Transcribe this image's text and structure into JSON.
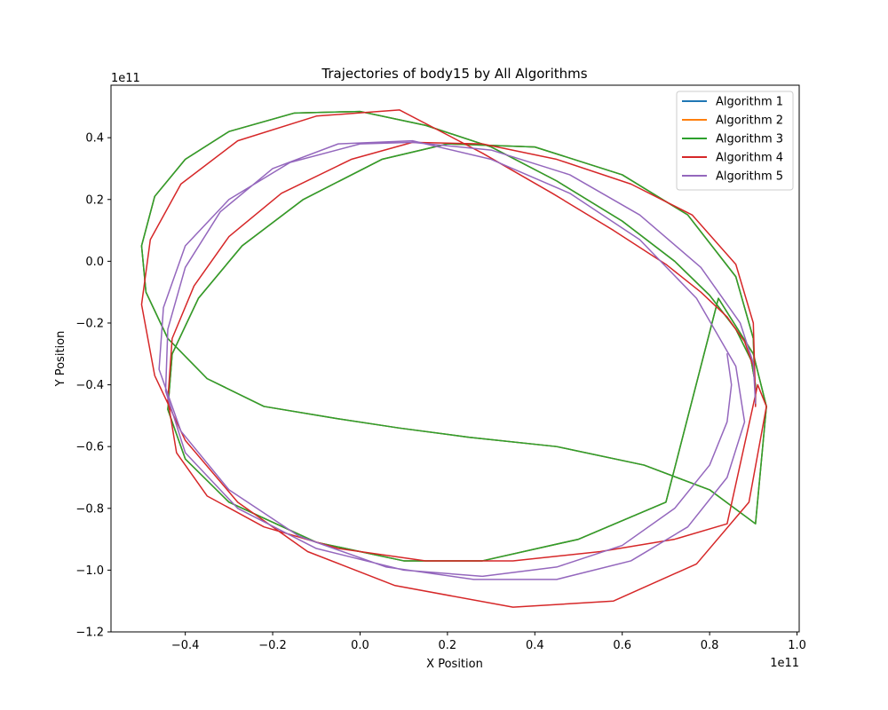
{
  "chart_data": {
    "type": "line",
    "title": "Trajectories of body15 by All Algorithms",
    "xlabel": "X Position",
    "ylabel": "Y Position",
    "x_offset_label": "1e11",
    "y_offset_label": "1e11",
    "xlim": [
      -0.57,
      1.005
    ],
    "ylim": [
      -1.2,
      0.57
    ],
    "x_ticks": [
      -0.4,
      -0.2,
      0.0,
      0.2,
      0.4,
      0.6,
      0.8,
      1.0
    ],
    "x_tick_labels": [
      "−0.4",
      "−0.2",
      "0.0",
      "0.2",
      "0.4",
      "0.6",
      "0.8",
      "1.0"
    ],
    "y_ticks": [
      -1.2,
      -1.0,
      -0.8,
      -0.6,
      -0.4,
      -0.2,
      0.0,
      0.2,
      0.4
    ],
    "y_tick_labels": [
      "−1.2",
      "−1.0",
      "−0.8",
      "−0.6",
      "−0.4",
      "−0.2",
      "0.0",
      "0.2",
      "0.4"
    ],
    "legend_position": "top-right",
    "grid": false,
    "series": [
      {
        "name": "Algorithm 1",
        "color": "#1f77b4",
        "x": [
          0.905,
          0.905,
          0.895,
          0.86,
          0.8,
          0.72,
          0.6,
          0.45,
          0.3,
          0.15,
          0.0,
          -0.15,
          -0.3,
          -0.4,
          -0.47,
          -0.5,
          -0.49,
          -0.44,
          -0.35,
          -0.22,
          -0.05,
          0.09,
          0.25,
          0.45,
          0.65,
          0.8,
          0.905,
          0.93,
          0.9,
          0.82,
          0.7,
          0.5,
          0.28,
          0.1,
          -0.1,
          -0.3,
          -0.4,
          -0.44,
          -0.43,
          -0.37,
          -0.27,
          -0.13,
          0.05,
          0.2,
          0.4,
          0.6,
          0.75,
          0.86,
          0.9,
          0.905
        ],
        "y": [
          -0.465,
          -0.4,
          -0.32,
          -0.22,
          -0.11,
          0.0,
          0.13,
          0.26,
          0.37,
          0.44,
          0.485,
          0.48,
          0.42,
          0.33,
          0.21,
          0.05,
          -0.1,
          -0.25,
          -0.38,
          -0.47,
          -0.51,
          -0.54,
          -0.57,
          -0.6,
          -0.66,
          -0.74,
          -0.85,
          -0.47,
          -0.3,
          -0.12,
          -0.78,
          -0.9,
          -0.97,
          -0.97,
          -0.91,
          -0.78,
          -0.64,
          -0.48,
          -0.3,
          -0.12,
          0.05,
          0.2,
          0.33,
          0.38,
          0.37,
          0.28,
          0.15,
          -0.05,
          -0.25,
          -0.46
        ]
      },
      {
        "name": "Algorithm 2",
        "color": "#ff7f0e",
        "x": [
          0.905,
          0.905,
          0.895,
          0.86,
          0.8,
          0.72,
          0.6,
          0.45,
          0.3,
          0.15,
          0.0,
          -0.15,
          -0.3,
          -0.4,
          -0.47,
          -0.5,
          -0.49,
          -0.44,
          -0.35,
          -0.22,
          -0.05,
          0.09,
          0.25,
          0.45,
          0.65,
          0.8,
          0.905,
          0.93,
          0.9,
          0.82,
          0.7,
          0.5,
          0.28,
          0.1,
          -0.1,
          -0.3,
          -0.4,
          -0.44,
          -0.43,
          -0.37,
          -0.27,
          -0.13,
          0.05,
          0.2,
          0.4,
          0.6,
          0.75,
          0.86,
          0.9,
          0.905
        ],
        "y": [
          -0.465,
          -0.4,
          -0.32,
          -0.22,
          -0.11,
          0.0,
          0.13,
          0.26,
          0.37,
          0.44,
          0.485,
          0.48,
          0.42,
          0.33,
          0.21,
          0.05,
          -0.1,
          -0.25,
          -0.38,
          -0.47,
          -0.51,
          -0.54,
          -0.57,
          -0.6,
          -0.66,
          -0.74,
          -0.85,
          -0.47,
          -0.3,
          -0.12,
          -0.78,
          -0.9,
          -0.97,
          -0.97,
          -0.91,
          -0.78,
          -0.64,
          -0.48,
          -0.3,
          -0.12,
          0.05,
          0.2,
          0.33,
          0.38,
          0.37,
          0.28,
          0.15,
          -0.05,
          -0.25,
          -0.46
        ]
      },
      {
        "name": "Algorithm 3",
        "color": "#2ca02c",
        "x": [
          0.905,
          0.905,
          0.895,
          0.86,
          0.8,
          0.72,
          0.6,
          0.45,
          0.3,
          0.15,
          0.0,
          -0.15,
          -0.3,
          -0.4,
          -0.47,
          -0.5,
          -0.49,
          -0.44,
          -0.35,
          -0.22,
          -0.05,
          0.09,
          0.25,
          0.45,
          0.65,
          0.8,
          0.905,
          0.93,
          0.9,
          0.82,
          0.7,
          0.5,
          0.28,
          0.1,
          -0.1,
          -0.3,
          -0.4,
          -0.44,
          -0.43,
          -0.37,
          -0.27,
          -0.13,
          0.05,
          0.2,
          0.4,
          0.6,
          0.75,
          0.86,
          0.9,
          0.905
        ],
        "y": [
          -0.465,
          -0.4,
          -0.32,
          -0.22,
          -0.11,
          0.0,
          0.13,
          0.26,
          0.37,
          0.44,
          0.485,
          0.48,
          0.42,
          0.33,
          0.21,
          0.05,
          -0.1,
          -0.25,
          -0.38,
          -0.47,
          -0.51,
          -0.54,
          -0.57,
          -0.6,
          -0.66,
          -0.74,
          -0.85,
          -0.47,
          -0.3,
          -0.12,
          -0.78,
          -0.9,
          -0.97,
          -0.97,
          -0.91,
          -0.78,
          -0.64,
          -0.48,
          -0.3,
          -0.12,
          0.05,
          0.2,
          0.33,
          0.38,
          0.37,
          0.28,
          0.15,
          -0.05,
          -0.25,
          -0.46
        ]
      },
      {
        "name": "Algorithm 4",
        "color": "#d62728",
        "x": [
          0.905,
          0.905,
          0.9,
          0.88,
          0.84,
          0.78,
          0.7,
          0.58,
          0.44,
          0.28,
          0.09,
          -0.1,
          -0.28,
          -0.41,
          -0.48,
          -0.5,
          -0.47,
          -0.4,
          -0.28,
          -0.12,
          0.08,
          0.35,
          0.58,
          0.77,
          0.89,
          0.93,
          0.91,
          0.84,
          0.72,
          0.55,
          0.35,
          0.15,
          -0.05,
          -0.22,
          -0.35,
          -0.42,
          -0.44,
          -0.43,
          -0.38,
          -0.3,
          -0.18,
          -0.02,
          0.12,
          0.28,
          0.45,
          0.62,
          0.76,
          0.86,
          0.9,
          0.905
        ],
        "y": [
          -0.47,
          -0.42,
          -0.34,
          -0.26,
          -0.18,
          -0.1,
          -0.01,
          0.1,
          0.22,
          0.35,
          0.49,
          0.47,
          0.39,
          0.25,
          0.07,
          -0.14,
          -0.37,
          -0.58,
          -0.78,
          -0.94,
          -1.05,
          -1.12,
          -1.1,
          -0.98,
          -0.78,
          -0.47,
          -0.4,
          -0.85,
          -0.9,
          -0.94,
          -0.97,
          -0.97,
          -0.93,
          -0.86,
          -0.76,
          -0.62,
          -0.45,
          -0.25,
          -0.08,
          0.08,
          0.22,
          0.33,
          0.385,
          0.38,
          0.33,
          0.25,
          0.15,
          -0.01,
          -0.2,
          -0.45
        ]
      },
      {
        "name": "Algorithm 5",
        "color": "#9467bd",
        "x": [
          0.84,
          0.85,
          0.84,
          0.8,
          0.72,
          0.6,
          0.45,
          0.28,
          0.1,
          -0.1,
          -0.28,
          -0.4,
          -0.445,
          -0.44,
          -0.4,
          -0.32,
          -0.2,
          -0.05,
          0.12,
          0.3,
          0.48,
          0.64,
          0.77,
          0.86,
          0.88,
          0.84,
          0.75,
          0.62,
          0.45,
          0.26,
          0.06,
          -0.14,
          -0.3,
          -0.41,
          -0.46,
          -0.45,
          -0.4,
          -0.3,
          -0.16,
          0.0,
          0.12,
          0.3,
          0.48,
          0.64,
          0.78,
          0.87,
          0.9,
          0.905
        ],
        "y": [
          -0.3,
          -0.4,
          -0.52,
          -0.66,
          -0.8,
          -0.92,
          -0.99,
          -1.02,
          -1.0,
          -0.93,
          -0.8,
          -0.62,
          -0.42,
          -0.22,
          -0.02,
          0.16,
          0.3,
          0.38,
          0.39,
          0.33,
          0.22,
          0.07,
          -0.12,
          -0.34,
          -0.52,
          -0.7,
          -0.86,
          -0.97,
          -1.03,
          -1.03,
          -0.99,
          -0.89,
          -0.74,
          -0.55,
          -0.35,
          -0.15,
          0.05,
          0.2,
          0.32,
          0.38,
          0.385,
          0.36,
          0.28,
          0.15,
          -0.02,
          -0.2,
          -0.33,
          -0.46
        ]
      }
    ]
  }
}
